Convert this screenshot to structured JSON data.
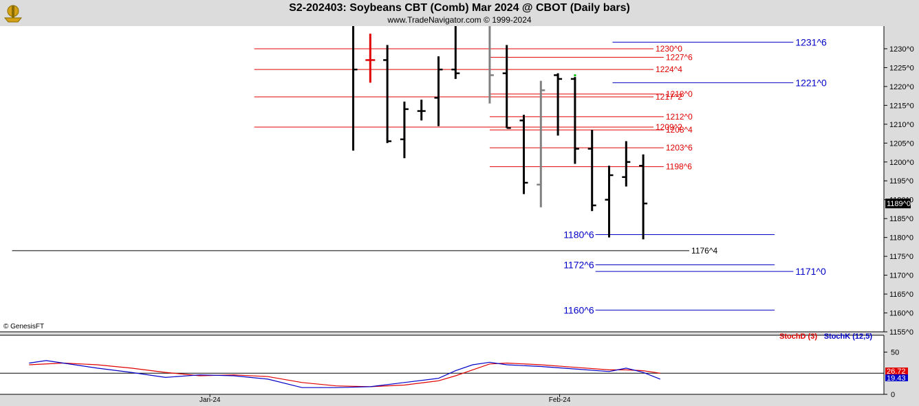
{
  "header": {
    "title": "S2-202403:  Soybeans CBT (Comb) Mar 2024 @ CBOT  (Daily bars)",
    "subtitle": "www.TradeNavigator.com © 1999-2024"
  },
  "copyright": "© GenesisFT",
  "colors": {
    "bar": "#000000",
    "bar_gray": "#808080",
    "bar_red": "#e00000",
    "red_level": "#e00000",
    "blue_level": "#0000c8",
    "stoch_d": "#e00000",
    "stoch_k": "#0000c8"
  },
  "chart_data": [
    {
      "type": "bar",
      "subtype": "ohlc",
      "ylim": [
        1155,
        1236
      ],
      "y_ticks": [
        "1230^0",
        "1225^0",
        "1220^0",
        "1215^0",
        "1210^0",
        "1205^0",
        "1200^0",
        "1195^0",
        "1190^0",
        "1185^0",
        "1180^0",
        "1175^0",
        "1170^0",
        "1165^0",
        "1160^0",
        "1155^0"
      ],
      "y_tick_values": [
        1230,
        1225,
        1220,
        1215,
        1210,
        1205,
        1200,
        1195,
        1190,
        1185,
        1180,
        1175,
        1170,
        1165,
        1160,
        1155
      ],
      "x_labels": [
        {
          "label": "Jan-24",
          "bar": -8.4
        },
        {
          "label": "Feb-24",
          "bar": 12.1
        }
      ],
      "bars": [
        {
          "i": 0,
          "o": 1256,
          "h": 1262,
          "l": 1203,
          "c": 1224.5,
          "color": "black"
        },
        {
          "i": 1,
          "o": 1227,
          "h": 1234,
          "l": 1221,
          "c": 1227,
          "color": "red"
        },
        {
          "i": 2,
          "o": 1227,
          "h": 1231,
          "l": 1205,
          "c": 1205.5,
          "color": "black"
        },
        {
          "i": 3,
          "o": 1206,
          "h": 1216,
          "l": 1201,
          "c": 1214,
          "color": "black"
        },
        {
          "i": 4,
          "o": 1213.5,
          "h": 1216.5,
          "l": 1211,
          "c": 1213.5,
          "color": "black"
        },
        {
          "i": 5,
          "o": 1217,
          "h": 1228,
          "l": 1209.5,
          "c": 1224.5,
          "color": "black"
        },
        {
          "i": 6,
          "o": 1224.5,
          "h": 1237,
          "l": 1222,
          "c": 1223.5,
          "color": "black"
        },
        {
          "i": 8,
          "o": 1238,
          "h": 1240,
          "l": 1215.5,
          "c": 1223,
          "color": "gray"
        },
        {
          "i": 9,
          "o": 1223.5,
          "h": 1231,
          "l": 1209,
          "c": 1209,
          "color": "black"
        },
        {
          "i": 10,
          "o": 1211,
          "h": 1212.5,
          "l": 1191.5,
          "c": 1194.5,
          "color": "black"
        },
        {
          "i": 11,
          "o": 1194,
          "h": 1221.5,
          "l": 1188,
          "c": 1219,
          "color": "gray"
        },
        {
          "i": 12,
          "o": 1223,
          "h": 1223.5,
          "l": 1207,
          "c": 1222,
          "color": "black"
        },
        {
          "i": 13,
          "o": 1222,
          "h": 1222.5,
          "l": 1199.5,
          "c": 1203.5,
          "color": "black"
        },
        {
          "i": 14,
          "o": 1203.5,
          "h": 1208.5,
          "l": 1187,
          "c": 1188.5,
          "color": "black"
        },
        {
          "i": 15,
          "o": 1190,
          "h": 1199,
          "l": 1180,
          "c": 1196.5,
          "color": "black"
        },
        {
          "i": 16,
          "o": 1196,
          "h": 1205.5,
          "l": 1193.5,
          "c": 1200,
          "color": "black"
        },
        {
          "i": 17,
          "o": 1199,
          "h": 1202,
          "l": 1179.5,
          "c": 1189,
          "color": "black"
        }
      ],
      "last_price": "1189^0",
      "levels": [
        {
          "label": "1230^0",
          "value": 1230,
          "color": "red",
          "x0": -5.8,
          "x1": 17.6,
          "side": "right"
        },
        {
          "label": "1227^6",
          "value": 1227.75,
          "color": "red",
          "x0": 8,
          "x1": 18.2,
          "side": "right"
        },
        {
          "label": "1224^4",
          "value": 1224.5,
          "color": "red",
          "x0": -5.8,
          "x1": 17.6,
          "side": "right"
        },
        {
          "label": "1218^0",
          "value": 1218,
          "color": "red",
          "x0": 8,
          "x1": 18.2,
          "side": "right"
        },
        {
          "label": "1217^2",
          "value": 1217.25,
          "color": "red",
          "x0": -5.8,
          "x1": 17.6,
          "side": "right"
        },
        {
          "label": "1212^0",
          "value": 1212,
          "color": "red",
          "x0": 8,
          "x1": 18.2,
          "side": "right"
        },
        {
          "label": "1208^4",
          "value": 1208.5,
          "color": "red",
          "x0": 8,
          "x1": 18.2,
          "side": "right"
        },
        {
          "label": "1209^2",
          "value": 1209.25,
          "color": "red",
          "x0": -5.8,
          "x1": 17.6,
          "side": "right"
        },
        {
          "label": "1203^6",
          "value": 1203.75,
          "color": "red",
          "x0": 8,
          "x1": 18.2,
          "side": "right"
        },
        {
          "label": "1198^6",
          "value": 1198.75,
          "color": "red",
          "x0": 8,
          "x1": 18.2,
          "side": "right"
        },
        {
          "label": "1231^6",
          "value": 1231.75,
          "color": "blue",
          "x0": 15.2,
          "x1": 25.8,
          "side": "right"
        },
        {
          "label": "1221^0",
          "value": 1221,
          "color": "blue",
          "x0": 15.2,
          "x1": 25.8,
          "side": "right"
        },
        {
          "label": "1180^6",
          "value": 1180.75,
          "color": "blue",
          "x0": 14.2,
          "x1": 24.7,
          "side": "left"
        },
        {
          "label": "1176^4",
          "value": 1176.5,
          "color": "black",
          "x0": -20,
          "x1": 19.7,
          "side": "right"
        },
        {
          "label": "1172^6",
          "value": 1172.75,
          "color": "blue",
          "x0": 14.2,
          "x1": 24.7,
          "side": "left"
        },
        {
          "label": "1171^0",
          "value": 1171,
          "color": "blue",
          "x0": 14.2,
          "x1": 25.8,
          "side": "right"
        },
        {
          "label": "1160^6",
          "value": 1160.75,
          "color": "blue",
          "x0": 14.2,
          "x1": 24.7,
          "side": "left"
        }
      ]
    },
    {
      "type": "line",
      "ylim": [
        0,
        70
      ],
      "y_ticks": [
        "50",
        "0"
      ],
      "y_tick_values": [
        50,
        0
      ],
      "reference_line": 25,
      "legend": [
        "StochD (3)",
        "StochK (12,5)"
      ],
      "legend_position": "top-right",
      "last_values": [
        "26.72",
        "19.43"
      ],
      "series": [
        {
          "name": "StochD (3)",
          "color": "red",
          "x": [
            -19,
            -17,
            -15,
            -13,
            -11,
            -9,
            -7,
            -5,
            -3,
            -1,
            1,
            3,
            5,
            6,
            7,
            8,
            9,
            11,
            13,
            15,
            16,
            17,
            18
          ],
          "y": [
            35,
            37,
            35,
            31,
            26,
            22,
            23,
            21,
            14,
            10,
            9,
            11,
            16,
            22,
            29,
            36,
            37,
            35,
            32,
            29,
            29,
            28,
            25
          ]
        },
        {
          "name": "StochK (12,5)",
          "color": "blue",
          "x": [
            -19,
            -18,
            -17,
            -15,
            -13,
            -11,
            -9,
            -7,
            -5,
            -3,
            -1,
            1,
            3,
            5,
            6,
            7,
            8,
            9,
            11,
            13,
            15,
            16,
            17,
            18
          ],
          "y": [
            37,
            40,
            37,
            31,
            26,
            20,
            23,
            22,
            18,
            8,
            8,
            9,
            14,
            19,
            28,
            35,
            38,
            35,
            33,
            30,
            27,
            31,
            26,
            18
          ]
        }
      ]
    }
  ]
}
